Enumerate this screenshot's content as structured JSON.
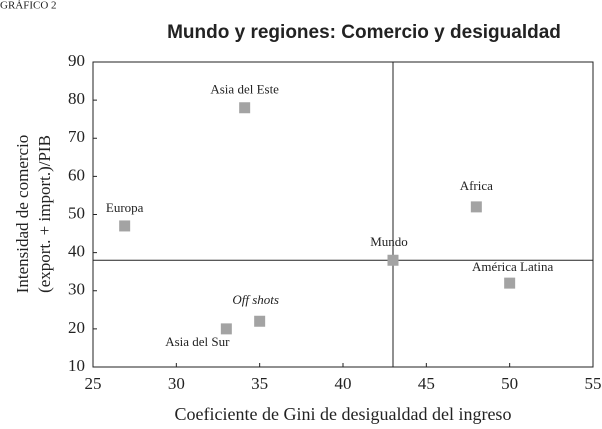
{
  "chart_data": {
    "type": "scatter",
    "label": "GRÁFICO 2",
    "title": "Mundo y regiones: Comercio y desigualdad",
    "xlabel": "Coeficiente de Gini de desigualdad del ingreso",
    "ylabel": [
      "Intensidad de comercio",
      "(export. + import.)/PIB"
    ],
    "xlim": [
      25,
      55
    ],
    "xticks": [
      25,
      30,
      35,
      40,
      45,
      50,
      55
    ],
    "ylim": [
      10,
      90
    ],
    "yticks": [
      10,
      20,
      30,
      40,
      50,
      60,
      70,
      80,
      90
    ],
    "color": "#a3a3a3",
    "reference_x": 43,
    "reference_y": 38,
    "points": [
      {
        "label": "Asia del Este",
        "x": 34.1,
        "y": 78
      },
      {
        "label": "Europa",
        "x": 26.9,
        "y": 47
      },
      {
        "label": "Africa",
        "x": 48,
        "y": 52
      },
      {
        "label": "Mundo",
        "x": 43,
        "y": 38
      },
      {
        "label": "América Latina",
        "x": 50,
        "y": 32
      },
      {
        "label": "Off shots",
        "x": 35,
        "y": 22
      },
      {
        "label": "Asia del Sur",
        "x": 33,
        "y": 20
      }
    ]
  }
}
